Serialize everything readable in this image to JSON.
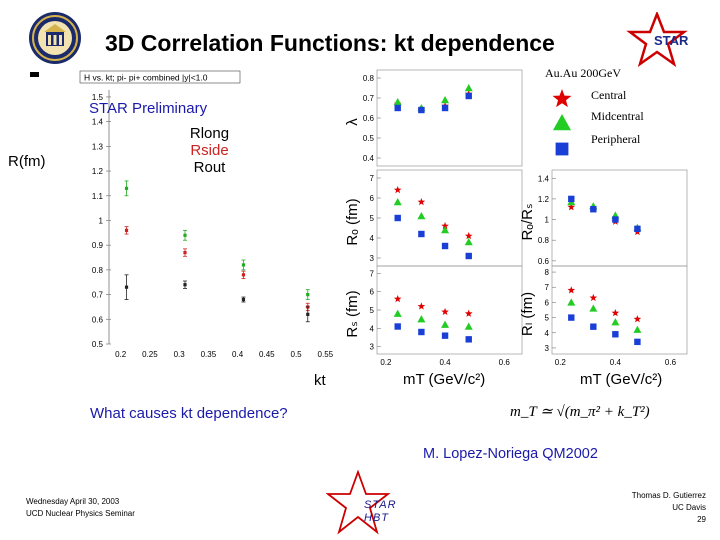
{
  "slide": {
    "title": "3D Correlation Functions: kt dependence",
    "star_logo_text": "STAR",
    "question": "What causes kt dependence?",
    "author": "M. Lopez-Noriega QM2002",
    "footer_left": [
      "Wednesday April 30, 2003",
      "UCD Nuclear Physics Seminar"
    ],
    "footer_right": [
      "Thomas D. Gutierrez",
      "UC Davis",
      "29"
    ],
    "star_hbt_lines": [
      "STAR",
      "HBT"
    ],
    "formula": "m_T ≃ √(m_π² + k_T²)",
    "colors": {
      "blue_text": "#1a1aaa",
      "red": "#e00000",
      "green": "#22cc22",
      "blue": "#1a3fd6",
      "star_outline": "#cc0000"
    }
  },
  "left_plot": {
    "header": "H vs. kt; pi- pi+ combined |y|<1.0",
    "preliminary": "STAR Preliminary",
    "ylabel": "R(fm)",
    "xlabel": "kt",
    "series_labels": [
      "Rlong",
      "Rside",
      "Rout"
    ],
    "y_ticks": [
      "1.5",
      "1.4",
      "1.3",
      "1.2",
      "1.1",
      "1",
      "0.9",
      "0.8",
      "0.7",
      "0.6",
      "0.5"
    ],
    "x_ticks": [
      "0.2",
      "0.25",
      "0.3",
      "0.35",
      "0.4",
      "0.45",
      "0.5",
      "0.55"
    ]
  },
  "right_legend": {
    "energy": "Au.Au 200GeV",
    "labels": [
      "Central",
      "Midcentral",
      "Peripheral"
    ]
  },
  "right_panels": {
    "lambda_label": "λ",
    "ro_label": "Rₒ (fm)",
    "rs_label": "Rₛ (fm)",
    "ratio_label": "Rₒ/Rₛ",
    "rl_label": "Rₗ (fm)",
    "xlabel": "mT (GeV/c²)",
    "lambda_ticks": [
      "0.8",
      "0.7",
      "0.6",
      "0.5",
      "0.4"
    ],
    "ro_ticks": [
      "7",
      "6",
      "5",
      "4",
      "3"
    ],
    "rs_ticks": [
      "7",
      "6",
      "5",
      "4",
      "3"
    ],
    "ratio_ticks": [
      "1.4",
      "1.2",
      "1",
      "0.8",
      "0.6"
    ],
    "rl_ticks": [
      "8",
      "7",
      "6",
      "5",
      "4",
      "3"
    ],
    "x_ticks_left": [
      "0.2",
      "0.4",
      "0.6"
    ],
    "x_ticks_right": [
      "0.2",
      "0.4",
      "0.6"
    ]
  },
  "chart_data": [
    {
      "type": "scatter",
      "title": "H vs. kt; pi- pi+ combined |y|<1.0",
      "xlabel": "kt",
      "ylabel": "R(fm)",
      "xlim": [
        0.18,
        0.57
      ],
      "ylim": [
        0.5,
        1.52
      ],
      "series": [
        {
          "name": "Rlong",
          "color": "#22aa22",
          "x": [
            0.21,
            0.31,
            0.41,
            0.52
          ],
          "y": [
            1.13,
            0.94,
            0.82,
            0.7
          ],
          "err": [
            0.03,
            0.02,
            0.02,
            0.02
          ]
        },
        {
          "name": "Rside",
          "color": "#cc2222",
          "x": [
            0.21,
            0.31,
            0.41,
            0.52
          ],
          "y": [
            0.96,
            0.87,
            0.78,
            0.65
          ],
          "err": [
            0.015,
            0.015,
            0.015,
            0.015
          ]
        },
        {
          "name": "Rout",
          "color": "#222222",
          "x": [
            0.21,
            0.31,
            0.41,
            0.52
          ],
          "y": [
            0.73,
            0.74,
            0.68,
            0.62
          ],
          "err": [
            0.05,
            0.015,
            0.01,
            0.03
          ]
        }
      ]
    },
    {
      "type": "scatter",
      "panel": "lambda",
      "ylabel": "λ",
      "xlim": [
        0.17,
        0.66
      ],
      "ylim": [
        0.36,
        0.84
      ],
      "series": [
        {
          "name": "Central",
          "marker": "star",
          "x": [
            0.24,
            0.32,
            0.4,
            0.48
          ],
          "y": [
            0.67,
            0.64,
            0.66,
            0.72
          ]
        },
        {
          "name": "Midcentral",
          "marker": "triangle",
          "x": [
            0.24,
            0.32,
            0.4,
            0.48
          ],
          "y": [
            0.68,
            0.65,
            0.69,
            0.75
          ]
        },
        {
          "name": "Peripheral",
          "marker": "square",
          "x": [
            0.24,
            0.32,
            0.4,
            0.48
          ],
          "y": [
            0.65,
            0.64,
            0.65,
            0.71
          ]
        }
      ]
    },
    {
      "type": "scatter",
      "panel": "Ro",
      "ylabel": "Ro (fm)",
      "xlim": [
        0.17,
        0.66
      ],
      "ylim": [
        2.6,
        7.4
      ],
      "series": [
        {
          "name": "Central",
          "marker": "star",
          "x": [
            0.24,
            0.32,
            0.4,
            0.48
          ],
          "y": [
            6.4,
            5.8,
            4.6,
            4.1
          ]
        },
        {
          "name": "Midcentral",
          "marker": "triangle",
          "x": [
            0.24,
            0.32,
            0.4,
            0.48
          ],
          "y": [
            5.8,
            5.1,
            4.4,
            3.8
          ]
        },
        {
          "name": "Peripheral",
          "marker": "square",
          "x": [
            0.24,
            0.32,
            0.4,
            0.48
          ],
          "y": [
            5.0,
            4.2,
            3.6,
            3.1
          ]
        }
      ]
    },
    {
      "type": "scatter",
      "panel": "Rs",
      "ylabel": "Rs (fm)",
      "xlim": [
        0.17,
        0.66
      ],
      "ylim": [
        2.6,
        7.4
      ],
      "series": [
        {
          "name": "Central",
          "marker": "star",
          "x": [
            0.24,
            0.32,
            0.4,
            0.48
          ],
          "y": [
            5.6,
            5.2,
            4.9,
            4.8
          ]
        },
        {
          "name": "Midcentral",
          "marker": "triangle",
          "x": [
            0.24,
            0.32,
            0.4,
            0.48
          ],
          "y": [
            4.8,
            4.5,
            4.2,
            4.1
          ]
        },
        {
          "name": "Peripheral",
          "marker": "square",
          "x": [
            0.24,
            0.32,
            0.4,
            0.48
          ],
          "y": [
            4.1,
            3.8,
            3.6,
            3.4
          ]
        }
      ]
    },
    {
      "type": "scatter",
      "panel": "Ro/Rs",
      "ylabel": "Ro/Rs",
      "xlim": [
        0.17,
        0.66
      ],
      "ylim": [
        0.55,
        1.48
      ],
      "series": [
        {
          "name": "Central",
          "marker": "star",
          "x": [
            0.24,
            0.32,
            0.4,
            0.48
          ],
          "y": [
            1.12,
            1.1,
            0.98,
            0.88
          ]
        },
        {
          "name": "Midcentral",
          "marker": "triangle",
          "x": [
            0.24,
            0.32,
            0.4,
            0.48
          ],
          "y": [
            1.17,
            1.13,
            1.04,
            0.92
          ]
        },
        {
          "name": "Peripheral",
          "marker": "square",
          "x": [
            0.24,
            0.32,
            0.4,
            0.48
          ],
          "y": [
            1.2,
            1.1,
            1.0,
            0.91
          ]
        }
      ]
    },
    {
      "type": "scatter",
      "panel": "Rl",
      "ylabel": "Rl (fm)",
      "xlim": [
        0.17,
        0.66
      ],
      "ylim": [
        2.6,
        8.4
      ],
      "series": [
        {
          "name": "Central",
          "marker": "star",
          "x": [
            0.24,
            0.32,
            0.4,
            0.48
          ],
          "y": [
            6.8,
            6.3,
            5.3,
            4.9
          ]
        },
        {
          "name": "Midcentral",
          "marker": "triangle",
          "x": [
            0.24,
            0.32,
            0.4,
            0.48
          ],
          "y": [
            6.0,
            5.6,
            4.7,
            4.2
          ]
        },
        {
          "name": "Peripheral",
          "marker": "square",
          "x": [
            0.24,
            0.32,
            0.4,
            0.48
          ],
          "y": [
            5.0,
            4.4,
            3.9,
            3.4
          ]
        }
      ]
    }
  ]
}
